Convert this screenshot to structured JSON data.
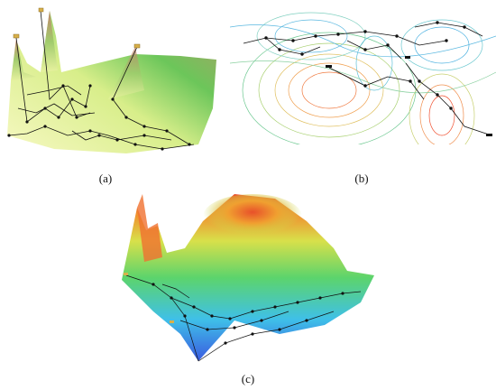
{
  "figure": {
    "panels": [
      {
        "id": "a",
        "caption": "(a)"
      },
      {
        "id": "b",
        "caption": "(b)"
      },
      {
        "id": "c",
        "caption": "(c)"
      }
    ],
    "colors": {
      "a_surface_light": "#f4f7b0",
      "a_surface_mid": "#a8dc6a",
      "a_surface_dark": "#3cae4a",
      "a_peak": "#c07a6a",
      "b_warm": "#f08a50",
      "b_cool": "#4ab0e0",
      "c_high": "#e84a2a",
      "c_mid": "#5fd06a",
      "c_low": "#3a6ae0",
      "network": "#111111"
    }
  }
}
